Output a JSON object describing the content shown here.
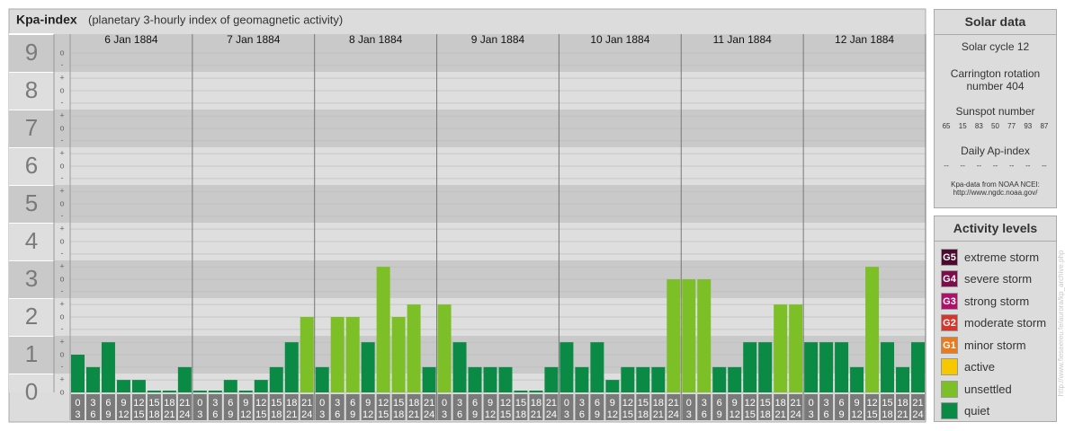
{
  "chart_data": {
    "type": "bar",
    "title": "Kpa-index",
    "subtitle": "(planetary 3-hourly index of geomagnetic activity)",
    "days": [
      "6 Jan 1884",
      "7 Jan 1884",
      "8 Jan 1884",
      "9 Jan 1884",
      "10 Jan 1884",
      "11 Jan 1884",
      "12 Jan 1884"
    ],
    "hours": [
      [
        "0",
        "3"
      ],
      [
        "3",
        "6"
      ],
      [
        "6",
        "9"
      ],
      [
        "9",
        "12"
      ],
      [
        "12",
        "15"
      ],
      [
        "15",
        "18"
      ],
      [
        "18",
        "21"
      ],
      [
        "21",
        "24"
      ]
    ],
    "values": [
      1,
      0.67,
      1.33,
      0.33,
      0.33,
      0,
      0,
      0.67,
      0,
      0,
      0.33,
      0,
      0.33,
      0.67,
      1.33,
      2,
      0.67,
      2,
      2,
      1.33,
      3.33,
      2,
      2.33,
      0.67,
      2.33,
      1.33,
      0.67,
      0.67,
      0.67,
      0,
      0,
      0.67,
      1.33,
      0.67,
      1.33,
      0.33,
      0.67,
      0.67,
      0.67,
      3,
      3,
      3,
      0.67,
      0.67,
      1.33,
      1.33,
      2.33,
      2.33,
      1.33,
      1.33,
      1.33,
      0.67,
      3.33,
      1.33,
      0.67,
      1.33
    ],
    "bar_colors": [
      "#0b8a45",
      "#0b8a45",
      "#0b8a45",
      "#0b8a45",
      "#0b8a45",
      "#0b8a45",
      "#0b8a45",
      "#0b8a45",
      "#0b8a45",
      "#0b8a45",
      "#0b8a45",
      "#0b8a45",
      "#0b8a45",
      "#0b8a45",
      "#0b8a45",
      "#7cbf26",
      "#0b8a45",
      "#7cbf26",
      "#7cbf26",
      "#0b8a45",
      "#7cbf26",
      "#7cbf26",
      "#7cbf26",
      "#0b8a45",
      "#7cbf26",
      "#0b8a45",
      "#0b8a45",
      "#0b8a45",
      "#0b8a45",
      "#0b8a45",
      "#0b8a45",
      "#0b8a45",
      "#0b8a45",
      "#0b8a45",
      "#0b8a45",
      "#0b8a45",
      "#0b8a45",
      "#0b8a45",
      "#0b8a45",
      "#7cbf26",
      "#7cbf26",
      "#7cbf26",
      "#0b8a45",
      "#0b8a45",
      "#0b8a45",
      "#0b8a45",
      "#7cbf26",
      "#7cbf26",
      "#0b8a45",
      "#0b8a45",
      "#0b8a45",
      "#0b8a45",
      "#7cbf26",
      "#0b8a45",
      "#0b8a45",
      "#0b8a45"
    ],
    "ylim": [
      0,
      9.5
    ],
    "yticks": [
      0,
      1,
      2,
      3,
      4,
      5,
      6,
      7,
      8,
      9
    ],
    "minor_yticks": [
      {
        "value": 0,
        "label": "o"
      },
      {
        "value": 0.33,
        "label": "+"
      },
      {
        "value": 0.67,
        "label": "-"
      },
      {
        "value": 1,
        "label": "o"
      },
      {
        "value": 1.33,
        "label": "+"
      },
      {
        "value": 1.67,
        "label": "-"
      },
      {
        "value": 2,
        "label": "o"
      },
      {
        "value": 2.33,
        "label": "+"
      },
      {
        "value": 2.67,
        "label": "-"
      },
      {
        "value": 3,
        "label": "o"
      },
      {
        "value": 3.33,
        "label": "+"
      },
      {
        "value": 3.67,
        "label": "-"
      },
      {
        "value": 4,
        "label": "o"
      },
      {
        "value": 4.33,
        "label": "+"
      },
      {
        "value": 4.67,
        "label": "-"
      },
      {
        "value": 5,
        "label": "o"
      },
      {
        "value": 5.33,
        "label": "+"
      },
      {
        "value": 5.67,
        "label": "-"
      },
      {
        "value": 6,
        "label": "o"
      },
      {
        "value": 6.33,
        "label": "+"
      },
      {
        "value": 6.67,
        "label": "-"
      },
      {
        "value": 7,
        "label": "o"
      },
      {
        "value": 7.33,
        "label": "+"
      },
      {
        "value": 7.67,
        "label": "-"
      },
      {
        "value": 8,
        "label": "o"
      },
      {
        "value": 8.33,
        "label": "+"
      },
      {
        "value": 8.67,
        "label": "-"
      },
      {
        "value": 9,
        "label": "o"
      }
    ]
  },
  "solar_data": {
    "title": "Solar data",
    "cycle": "Solar cycle 12",
    "carrington": "Carrington rotation number 404",
    "sunspot_title": "Sunspot number",
    "sunspot_numbers": [
      65,
      15,
      83,
      50,
      77,
      93,
      87
    ],
    "ap_title": "Daily Ap-index",
    "ap_values": [
      "--",
      "--",
      "--",
      "--",
      "--",
      "--",
      "--"
    ],
    "source": "Kpa-data from NOAA NCEI:",
    "source_url": "http://www.ngdc.noaa.gov/"
  },
  "activity_levels": {
    "title": "Activity levels",
    "items": [
      {
        "badge": "G5",
        "label": "extreme storm",
        "color": "#4b0a2e"
      },
      {
        "badge": "G4",
        "label": "severe storm",
        "color": "#7a0d4a"
      },
      {
        "badge": "G3",
        "label": "strong storm",
        "color": "#b0106a"
      },
      {
        "badge": "G2",
        "label": "moderate storm",
        "color": "#d8362a"
      },
      {
        "badge": "G1",
        "label": "minor storm",
        "color": "#ea7a1c"
      },
      {
        "label": "active",
        "color": "#f7c800"
      },
      {
        "label": "unsettled",
        "color": "#7cbf26"
      },
      {
        "label": "quiet",
        "color": "#0b8a45"
      }
    ]
  },
  "side_url": "http://www.fieseereu.fe/aurora/kp_archive.php"
}
